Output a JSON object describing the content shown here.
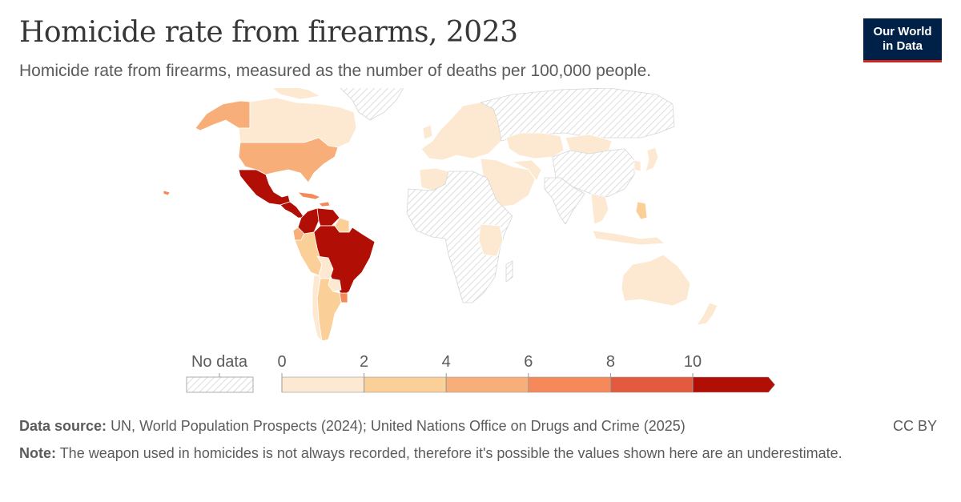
{
  "header": {
    "title": "Homicide rate from firearms, 2023",
    "subtitle": "Homicide rate from firearms, measured as the number of deaths per 100,000 people."
  },
  "logo": {
    "line1": "Our World",
    "line2": "in Data"
  },
  "colors": {
    "no_data_stroke": "#c4c4c4",
    "bins": [
      "#fde9d2",
      "#fbcf98",
      "#f7ae79",
      "#f5895a",
      "#e35a3e",
      "#b10e06"
    ]
  },
  "legend": {
    "no_data_label": "No data",
    "ticks": [
      "0",
      "2",
      "4",
      "6",
      "8",
      "10"
    ]
  },
  "map_regions": [
    {
      "region": "Canada",
      "bin": 0
    },
    {
      "region": "Alaska",
      "bin": 2
    },
    {
      "region": "United States",
      "bin": 2
    },
    {
      "region": "Mexico",
      "bin": 5
    },
    {
      "region": "Central America",
      "bin": 5
    },
    {
      "region": "Caribbean",
      "bin": 3
    },
    {
      "region": "Colombia",
      "bin": 5
    },
    {
      "region": "Venezuela",
      "bin": 5
    },
    {
      "region": "Guyana",
      "bin": 1
    },
    {
      "region": "Ecuador",
      "bin": 2
    },
    {
      "region": "Peru",
      "bin": 1
    },
    {
      "region": "Brazil",
      "bin": 5
    },
    {
      "region": "Bolivia",
      "bin": 0
    },
    {
      "region": "Paraguay",
      "bin": 0
    },
    {
      "region": "Uruguay",
      "bin": 3
    },
    {
      "region": "Argentina",
      "bin": 1
    },
    {
      "region": "Chile",
      "bin": 0
    },
    {
      "region": "Greenland",
      "bin": -1
    },
    {
      "region": "Europe",
      "bin": 0
    },
    {
      "region": "Russia",
      "bin": -1
    },
    {
      "region": "Kazakhstan",
      "bin": 0
    },
    {
      "region": "Mongolia",
      "bin": 0
    },
    {
      "region": "China",
      "bin": -1
    },
    {
      "region": "Japan",
      "bin": 0
    },
    {
      "region": "Middle East",
      "bin": 0
    },
    {
      "region": "India",
      "bin": -1
    },
    {
      "region": "Southeast Asia",
      "bin": 0
    },
    {
      "region": "Philippines",
      "bin": 1
    },
    {
      "region": "Morocco",
      "bin": 0
    },
    {
      "region": "Africa",
      "bin": -1
    },
    {
      "region": "East Africa",
      "bin": 0
    },
    {
      "region": "Australia",
      "bin": 0
    },
    {
      "region": "New Zealand",
      "bin": 0
    },
    {
      "region": "Hawaii",
      "bin": 3
    }
  ],
  "footer": {
    "source_label": "Data source:",
    "source_text": "UN, World Population Prospects (2024); United Nations Office on Drugs and Crime (2025)",
    "note_label": "Note:",
    "note_text": "The weapon used in homicides is not always recorded, therefore it's possible the values shown here are an underestimate.",
    "license": "CC BY"
  }
}
